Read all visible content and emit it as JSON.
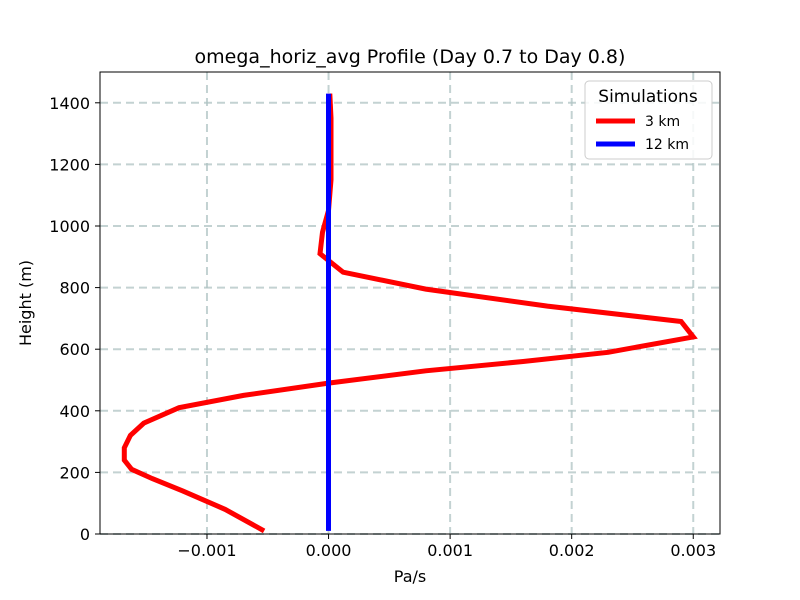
{
  "chart_data": {
    "type": "line",
    "title": "omega_horiz_avg Profile (Day 0.7 to Day 0.8)",
    "xlabel": "Pa/s",
    "ylabel": "Height (m)",
    "xlim": [
      -0.00188,
      0.00322
    ],
    "ylim": [
      0,
      1500
    ],
    "xticks": [
      -0.001,
      0.0,
      0.001,
      0.002,
      0.003
    ],
    "xtick_labels": [
      "−0.001",
      "0.000",
      "0.001",
      "0.002",
      "0.003"
    ],
    "yticks": [
      0,
      200,
      400,
      600,
      800,
      1000,
      1200,
      1400
    ],
    "ytick_labels": [
      "0",
      "200",
      "400",
      "600",
      "800",
      "1000",
      "1200",
      "1400"
    ],
    "grid": true,
    "legend": {
      "title": "Simulations",
      "position": "top-right"
    },
    "series": [
      {
        "name": "3 km",
        "color": "#ff0000",
        "x": [
          -0.00053,
          -0.00085,
          -0.0012,
          -0.00145,
          -0.00162,
          -0.00168,
          -0.00168,
          -0.00163,
          -0.00152,
          -0.00123,
          -0.0007,
          0.0,
          0.0008,
          0.0016,
          0.0023,
          0.003,
          0.0029,
          0.0018,
          0.0008,
          0.00012,
          -7e-05,
          -5e-05,
          0.0,
          2e-05,
          2e-05,
          2e-05,
          1e-05
        ],
        "y": [
          10,
          80,
          140,
          180,
          210,
          240,
          280,
          320,
          360,
          410,
          450,
          490,
          530,
          560,
          590,
          640,
          690,
          740,
          795,
          850,
          910,
          980,
          1050,
          1150,
          1250,
          1350,
          1430
        ]
      },
      {
        "name": "12 km",
        "color": "#0000ff",
        "x": [
          0.0,
          0.0
        ],
        "y": [
          10,
          1430
        ]
      }
    ]
  }
}
